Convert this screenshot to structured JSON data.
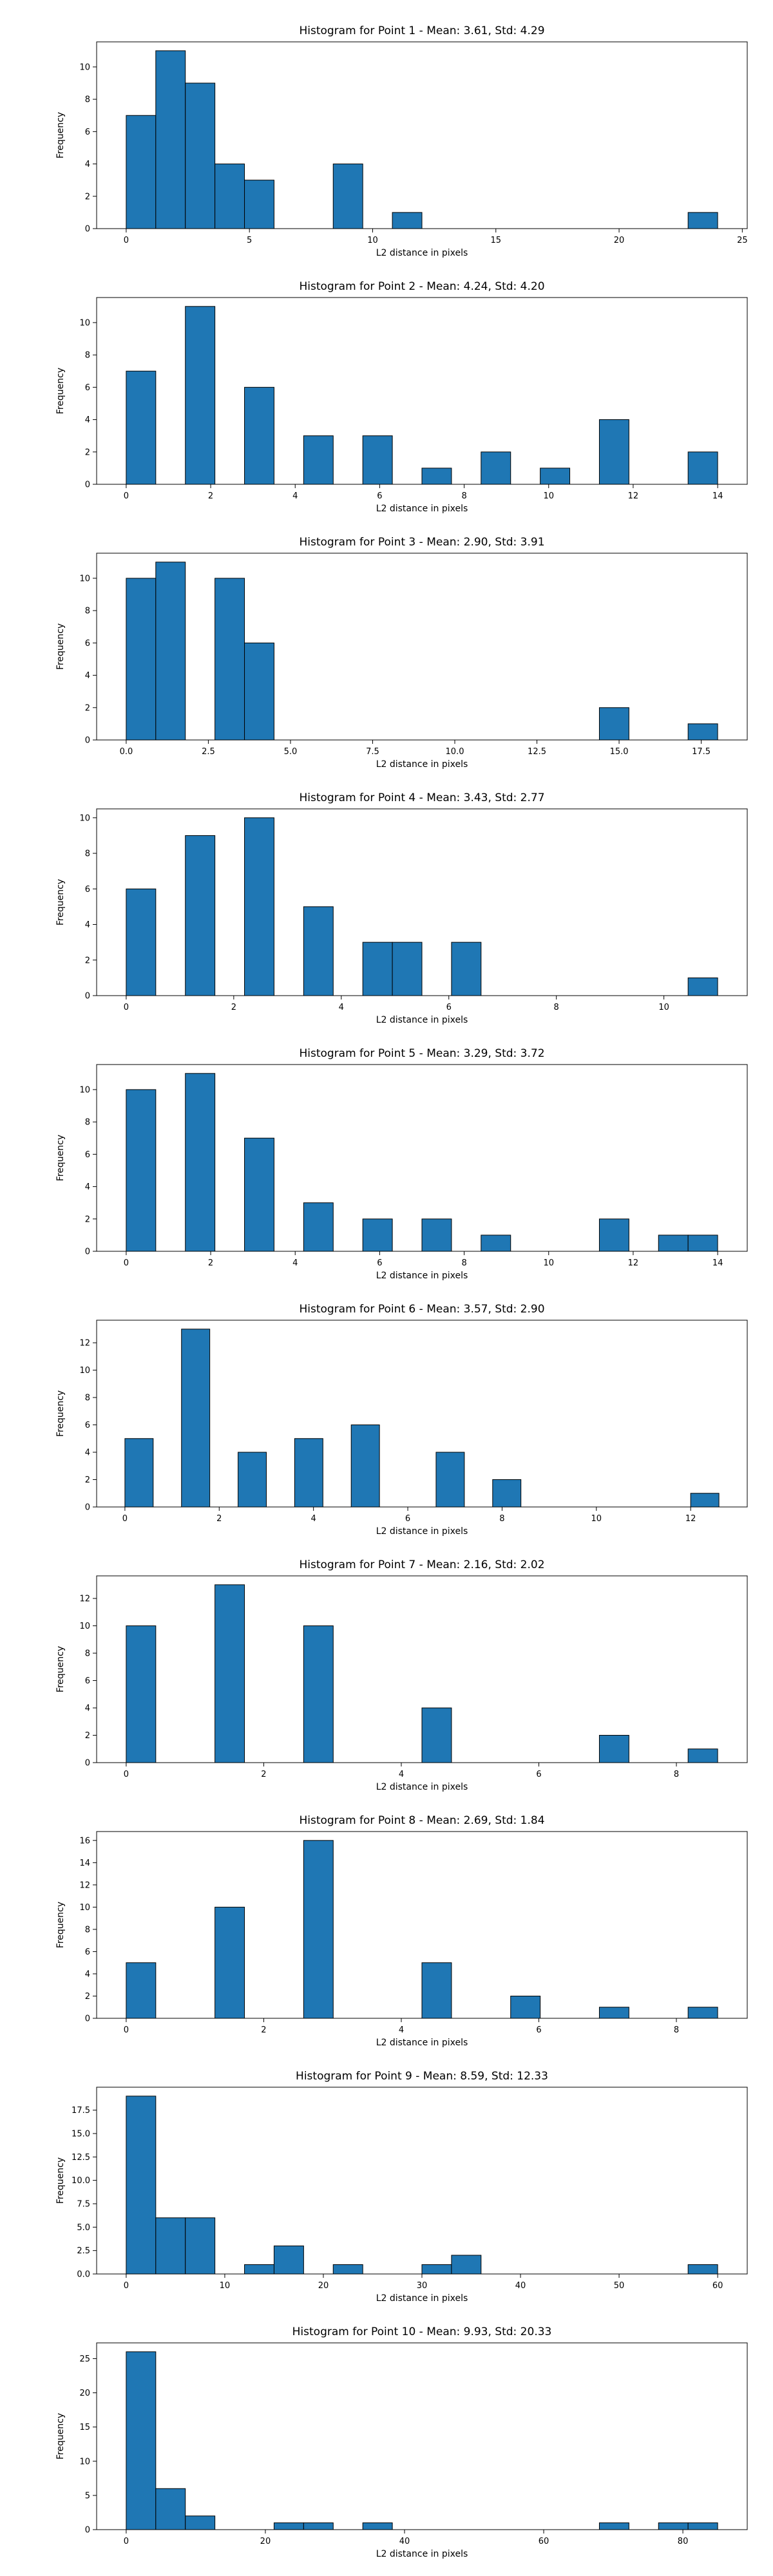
{
  "figure": {
    "bar_color": "#1f77b4",
    "edge_color": "#000000"
  },
  "chart_data": [
    {
      "type": "bar",
      "title": "Histogram for Point 1 - Mean: 3.61, Std: 4.29",
      "xlabel": "L2 distance in pixels",
      "ylabel": "Frequency",
      "bins": [
        {
          "x0": 0,
          "x1": 1.2,
          "count": 7
        },
        {
          "x0": 1.2,
          "x1": 2.4,
          "count": 11
        },
        {
          "x0": 2.4,
          "x1": 3.6,
          "count": 9
        },
        {
          "x0": 3.6,
          "x1": 4.8,
          "count": 4
        },
        {
          "x0": 4.8,
          "x1": 6.0,
          "count": 3
        },
        {
          "x0": 8.4,
          "x1": 9.6,
          "count": 4
        },
        {
          "x0": 10.8,
          "x1": 12.0,
          "count": 1
        },
        {
          "x0": 22.8,
          "x1": 24.0,
          "count": 1
        }
      ],
      "xlim": [
        -1.2,
        25.2
      ],
      "ylim": [
        0,
        11.55
      ],
      "xticks": [
        0,
        5,
        10,
        15,
        20,
        25
      ],
      "xtick_labels": [
        "0",
        "5",
        "10",
        "15",
        "20",
        "25"
      ],
      "yticks": [
        0,
        2,
        4,
        6,
        8,
        10
      ],
      "ytick_labels": [
        "0",
        "2",
        "4",
        "6",
        "8",
        "10"
      ]
    },
    {
      "type": "bar",
      "title": "Histogram for Point 2 - Mean: 4.24, Std: 4.20",
      "xlabel": "L2 distance in pixels",
      "ylabel": "Frequency",
      "bins": [
        {
          "x0": 0,
          "x1": 0.7,
          "count": 7
        },
        {
          "x0": 1.4,
          "x1": 2.1,
          "count": 11
        },
        {
          "x0": 2.8,
          "x1": 3.5,
          "count": 6
        },
        {
          "x0": 4.2,
          "x1": 4.9,
          "count": 3
        },
        {
          "x0": 5.6,
          "x1": 6.3,
          "count": 3
        },
        {
          "x0": 7.0,
          "x1": 7.7,
          "count": 1
        },
        {
          "x0": 8.4,
          "x1": 9.1,
          "count": 2
        },
        {
          "x0": 9.8,
          "x1": 10.5,
          "count": 1
        },
        {
          "x0": 11.2,
          "x1": 11.9,
          "count": 4
        },
        {
          "x0": 13.3,
          "x1": 14.0,
          "count": 2
        }
      ],
      "xlim": [
        -0.7,
        14.7
      ],
      "ylim": [
        0,
        11.55
      ],
      "xticks": [
        0,
        2,
        4,
        6,
        8,
        10,
        12,
        14
      ],
      "xtick_labels": [
        "0",
        "2",
        "4",
        "6",
        "8",
        "10",
        "12",
        "14"
      ],
      "yticks": [
        0,
        2,
        4,
        6,
        8,
        10
      ],
      "ytick_labels": [
        "0",
        "2",
        "4",
        "6",
        "8",
        "10"
      ]
    },
    {
      "type": "bar",
      "title": "Histogram for Point 3 - Mean: 2.90, Std: 3.91",
      "xlabel": "L2 distance in pixels",
      "ylabel": "Frequency",
      "bins": [
        {
          "x0": 0,
          "x1": 0.9,
          "count": 10
        },
        {
          "x0": 0.9,
          "x1": 1.8,
          "count": 11
        },
        {
          "x0": 2.7,
          "x1": 3.6,
          "count": 10
        },
        {
          "x0": 3.6,
          "x1": 4.5,
          "count": 6
        },
        {
          "x0": 14.4,
          "x1": 15.3,
          "count": 2
        },
        {
          "x0": 17.1,
          "x1": 18.0,
          "count": 1
        }
      ],
      "xlim": [
        -0.9,
        18.9
      ],
      "ylim": [
        0,
        11.55
      ],
      "xticks": [
        0,
        2.5,
        5,
        7.5,
        10,
        12.5,
        15,
        17.5
      ],
      "xtick_labels": [
        "0.0",
        "2.5",
        "5.0",
        "7.5",
        "10.0",
        "12.5",
        "15.0",
        "17.5"
      ],
      "yticks": [
        0,
        2,
        4,
        6,
        8,
        10
      ],
      "ytick_labels": [
        "0",
        "2",
        "4",
        "6",
        "8",
        "10"
      ]
    },
    {
      "type": "bar",
      "title": "Histogram for Point 4 - Mean: 3.43, Std: 2.77",
      "xlabel": "L2 distance in pixels",
      "ylabel": "Frequency",
      "bins": [
        {
          "x0": 0,
          "x1": 0.55,
          "count": 6
        },
        {
          "x0": 1.1,
          "x1": 1.65,
          "count": 9
        },
        {
          "x0": 2.2,
          "x1": 2.75,
          "count": 10
        },
        {
          "x0": 3.3,
          "x1": 3.85,
          "count": 5
        },
        {
          "x0": 4.4,
          "x1": 4.95,
          "count": 3
        },
        {
          "x0": 4.95,
          "x1": 5.5,
          "count": 3
        },
        {
          "x0": 6.05,
          "x1": 6.6,
          "count": 3
        },
        {
          "x0": 10.45,
          "x1": 11.0,
          "count": 1
        }
      ],
      "xlim": [
        -0.55,
        11.55
      ],
      "ylim": [
        0,
        10.5
      ],
      "xticks": [
        0,
        2,
        4,
        6,
        8,
        10
      ],
      "xtick_labels": [
        "0",
        "2",
        "4",
        "6",
        "8",
        "10"
      ],
      "yticks": [
        0,
        2,
        4,
        6,
        8,
        10
      ],
      "ytick_labels": [
        "0",
        "2",
        "4",
        "6",
        "8",
        "10"
      ]
    },
    {
      "type": "bar",
      "title": "Histogram for Point 5 - Mean: 3.29, Std: 3.72",
      "xlabel": "L2 distance in pixels",
      "ylabel": "Frequency",
      "bins": [
        {
          "x0": 0,
          "x1": 0.7,
          "count": 10
        },
        {
          "x0": 1.4,
          "x1": 2.1,
          "count": 11
        },
        {
          "x0": 2.8,
          "x1": 3.5,
          "count": 7
        },
        {
          "x0": 4.2,
          "x1": 4.9,
          "count": 3
        },
        {
          "x0": 5.6,
          "x1": 6.3,
          "count": 2
        },
        {
          "x0": 7.0,
          "x1": 7.7,
          "count": 2
        },
        {
          "x0": 8.4,
          "x1": 9.1,
          "count": 1
        },
        {
          "x0": 11.2,
          "x1": 11.9,
          "count": 2
        },
        {
          "x0": 12.6,
          "x1": 13.3,
          "count": 1
        },
        {
          "x0": 13.3,
          "x1": 14.0,
          "count": 1
        }
      ],
      "xlim": [
        -0.7,
        14.7
      ],
      "ylim": [
        0,
        11.55
      ],
      "xticks": [
        0,
        2,
        4,
        6,
        8,
        10,
        12,
        14
      ],
      "xtick_labels": [
        "0",
        "2",
        "4",
        "6",
        "8",
        "10",
        "12",
        "14"
      ],
      "yticks": [
        0,
        2,
        4,
        6,
        8,
        10
      ],
      "ytick_labels": [
        "0",
        "2",
        "4",
        "6",
        "8",
        "10"
      ]
    },
    {
      "type": "bar",
      "title": "Histogram for Point 6 - Mean: 3.57, Std: 2.90",
      "xlabel": "L2 distance in pixels",
      "ylabel": "Frequency",
      "bins": [
        {
          "x0": 0,
          "x1": 0.6,
          "count": 5
        },
        {
          "x0": 1.2,
          "x1": 1.8,
          "count": 13
        },
        {
          "x0": 2.4,
          "x1": 3.0,
          "count": 4
        },
        {
          "x0": 3.6,
          "x1": 4.2,
          "count": 5
        },
        {
          "x0": 4.8,
          "x1": 5.4,
          "count": 6
        },
        {
          "x0": 6.6,
          "x1": 7.2,
          "count": 4
        },
        {
          "x0": 7.8,
          "x1": 8.4,
          "count": 2
        },
        {
          "x0": 12.0,
          "x1": 12.6,
          "count": 1
        }
      ],
      "xlim": [
        -0.6,
        13.2
      ],
      "ylim": [
        0,
        13.65
      ],
      "xticks": [
        0,
        2,
        4,
        6,
        8,
        10,
        12
      ],
      "xtick_labels": [
        "0",
        "2",
        "4",
        "6",
        "8",
        "10",
        "12"
      ],
      "yticks": [
        0,
        2,
        4,
        6,
        8,
        10,
        12
      ],
      "ytick_labels": [
        "0",
        "2",
        "4",
        "6",
        "8",
        "10",
        "12"
      ]
    },
    {
      "type": "bar",
      "title": "Histogram for Point 7 - Mean: 2.16, Std: 2.02",
      "xlabel": "L2 distance in pixels",
      "ylabel": "Frequency",
      "bins": [
        {
          "x0": 0,
          "x1": 0.43,
          "count": 10
        },
        {
          "x0": 1.29,
          "x1": 1.72,
          "count": 13
        },
        {
          "x0": 2.58,
          "x1": 3.01,
          "count": 10
        },
        {
          "x0": 4.3,
          "x1": 4.73,
          "count": 4
        },
        {
          "x0": 6.88,
          "x1": 7.31,
          "count": 2
        },
        {
          "x0": 8.17,
          "x1": 8.6,
          "count": 1
        }
      ],
      "xlim": [
        -0.43,
        9.03
      ],
      "ylim": [
        0,
        13.65
      ],
      "xticks": [
        0,
        2,
        4,
        6,
        8
      ],
      "xtick_labels": [
        "0",
        "2",
        "4",
        "6",
        "8"
      ],
      "yticks": [
        0,
        2,
        4,
        6,
        8,
        10,
        12
      ],
      "ytick_labels": [
        "0",
        "2",
        "4",
        "6",
        "8",
        "10",
        "12"
      ]
    },
    {
      "type": "bar",
      "title": "Histogram for Point 8 - Mean: 2.69, Std: 1.84",
      "xlabel": "L2 distance in pixels",
      "ylabel": "Frequency",
      "bins": [
        {
          "x0": 0,
          "x1": 0.43,
          "count": 5
        },
        {
          "x0": 1.29,
          "x1": 1.72,
          "count": 10
        },
        {
          "x0": 2.58,
          "x1": 3.01,
          "count": 16
        },
        {
          "x0": 4.3,
          "x1": 4.73,
          "count": 5
        },
        {
          "x0": 5.59,
          "x1": 6.02,
          "count": 2
        },
        {
          "x0": 6.88,
          "x1": 7.31,
          "count": 1
        },
        {
          "x0": 8.17,
          "x1": 8.6,
          "count": 1
        }
      ],
      "xlim": [
        -0.43,
        9.03
      ],
      "ylim": [
        0,
        16.8
      ],
      "xticks": [
        0,
        2,
        4,
        6,
        8
      ],
      "xtick_labels": [
        "0",
        "2",
        "4",
        "6",
        "8"
      ],
      "yticks": [
        0,
        2,
        4,
        6,
        8,
        10,
        12,
        14,
        16
      ],
      "ytick_labels": [
        "0",
        "2",
        "4",
        "6",
        "8",
        "10",
        "12",
        "14",
        "16"
      ]
    },
    {
      "type": "bar",
      "title": "Histogram for Point 9 - Mean: 8.59, Std: 12.33",
      "xlabel": "L2 distance in pixels",
      "ylabel": "Frequency",
      "bins": [
        {
          "x0": 0,
          "x1": 3.0,
          "count": 19
        },
        {
          "x0": 3.0,
          "x1": 6.0,
          "count": 6
        },
        {
          "x0": 6.0,
          "x1": 9.0,
          "count": 6
        },
        {
          "x0": 12.0,
          "x1": 15.0,
          "count": 1
        },
        {
          "x0": 15.0,
          "x1": 18.0,
          "count": 3
        },
        {
          "x0": 21.0,
          "x1": 24.0,
          "count": 1
        },
        {
          "x0": 30.0,
          "x1": 33.0,
          "count": 1
        },
        {
          "x0": 33.0,
          "x1": 36.0,
          "count": 2
        },
        {
          "x0": 57.0,
          "x1": 60.0,
          "count": 1
        }
      ],
      "xlim": [
        -3.0,
        63.0
      ],
      "ylim": [
        0,
        19.95
      ],
      "xticks": [
        0,
        10,
        20,
        30,
        40,
        50,
        60
      ],
      "xtick_labels": [
        "0",
        "10",
        "20",
        "30",
        "40",
        "50",
        "60"
      ],
      "yticks": [
        0,
        2.5,
        5,
        7.5,
        10,
        12.5,
        15,
        17.5
      ],
      "ytick_labels": [
        "0.0",
        "2.5",
        "5.0",
        "7.5",
        "10.0",
        "12.5",
        "15.0",
        "17.5"
      ]
    },
    {
      "type": "bar",
      "title": "Histogram for Point 10 - Mean: 9.93, Std: 20.33",
      "xlabel": "L2 distance in pixels",
      "ylabel": "Frequency",
      "bins": [
        {
          "x0": 0,
          "x1": 4.25,
          "count": 26
        },
        {
          "x0": 4.25,
          "x1": 8.5,
          "count": 6
        },
        {
          "x0": 8.5,
          "x1": 12.75,
          "count": 2
        },
        {
          "x0": 21.25,
          "x1": 25.5,
          "count": 1
        },
        {
          "x0": 25.5,
          "x1": 29.75,
          "count": 1
        },
        {
          "x0": 34.0,
          "x1": 38.25,
          "count": 1
        },
        {
          "x0": 68.0,
          "x1": 72.25,
          "count": 1
        },
        {
          "x0": 76.5,
          "x1": 80.75,
          "count": 1
        },
        {
          "x0": 80.75,
          "x1": 85.0,
          "count": 1
        }
      ],
      "xlim": [
        -4.25,
        89.25
      ],
      "ylim": [
        0,
        27.3
      ],
      "xticks": [
        0,
        20,
        40,
        60,
        80
      ],
      "xtick_labels": [
        "0",
        "20",
        "40",
        "60",
        "80"
      ],
      "yticks": [
        0,
        5,
        10,
        15,
        20,
        25
      ],
      "ytick_labels": [
        "0",
        "5",
        "10",
        "15",
        "20",
        "25"
      ]
    }
  ]
}
